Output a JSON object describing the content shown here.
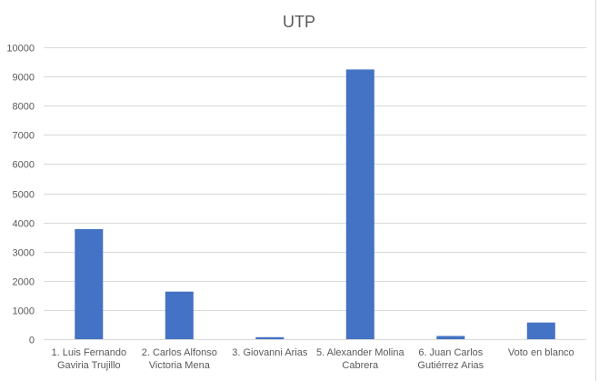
{
  "chart_data": {
    "type": "bar",
    "title": "UTP",
    "xlabel": "",
    "ylabel": "",
    "ylim": [
      0,
      10000
    ],
    "yticks": [
      0,
      1000,
      2000,
      3000,
      4000,
      5000,
      6000,
      7000,
      8000,
      9000,
      10000
    ],
    "grid": true,
    "legend": "none",
    "bar_color": "#4472C4",
    "categories": [
      [
        "1. Luis Fernando",
        "Gaviria Trujillo"
      ],
      [
        "2. Carlos Alfonso",
        "Victoria Mena"
      ],
      [
        "3. Giovanni Arias"
      ],
      [
        "5. Alexander Molina",
        "Cabrera"
      ],
      [
        "6. Juan Carlos",
        "Gutiérrez Arias"
      ],
      [
        "Voto en blanco"
      ]
    ],
    "values": [
      3770,
      1630,
      70,
      9240,
      110,
      570
    ]
  }
}
